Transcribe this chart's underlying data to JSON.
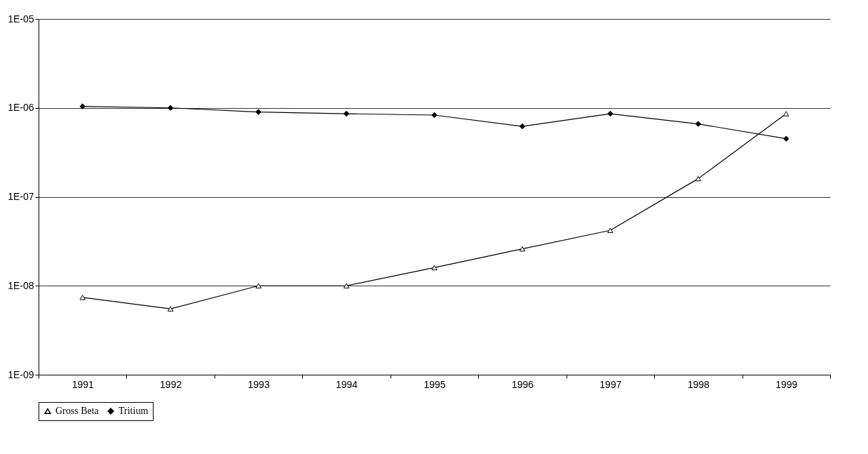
{
  "chart_data": {
    "type": "line",
    "categories": [
      "1991",
      "1992",
      "1993",
      "1994",
      "1995",
      "1996",
      "1997",
      "1998",
      "1999"
    ],
    "series": [
      {
        "name": "Gross Beta",
        "color": "#000000",
        "marker": "triangle",
        "values": [
          7.4e-09,
          5.5e-09,
          1e-08,
          1e-08,
          1.6e-08,
          2.6e-08,
          4.2e-08,
          1.6e-07,
          8.6e-07
        ]
      },
      {
        "name": "Tritium",
        "color": "#000000",
        "marker": "diamond",
        "values": [
          1.04e-06,
          1e-06,
          9e-07,
          8.6e-07,
          8.3e-07,
          6.2e-07,
          8.6e-07,
          6.6e-07,
          4.5e-07
        ]
      }
    ],
    "log": true,
    "ylim": [
      1e-09,
      1e-05
    ],
    "yticks": [
      {
        "value": 1e-09,
        "label": "1E-09"
      },
      {
        "value": 1e-08,
        "label": "1E-08"
      },
      {
        "value": 1e-07,
        "label": "1E-07"
      },
      {
        "value": 1e-06,
        "label": "1E-06"
      },
      {
        "value": 1e-05,
        "label": "1E-05"
      }
    ],
    "grid": "y",
    "legend": "bottom",
    "line_style": "solid"
  }
}
